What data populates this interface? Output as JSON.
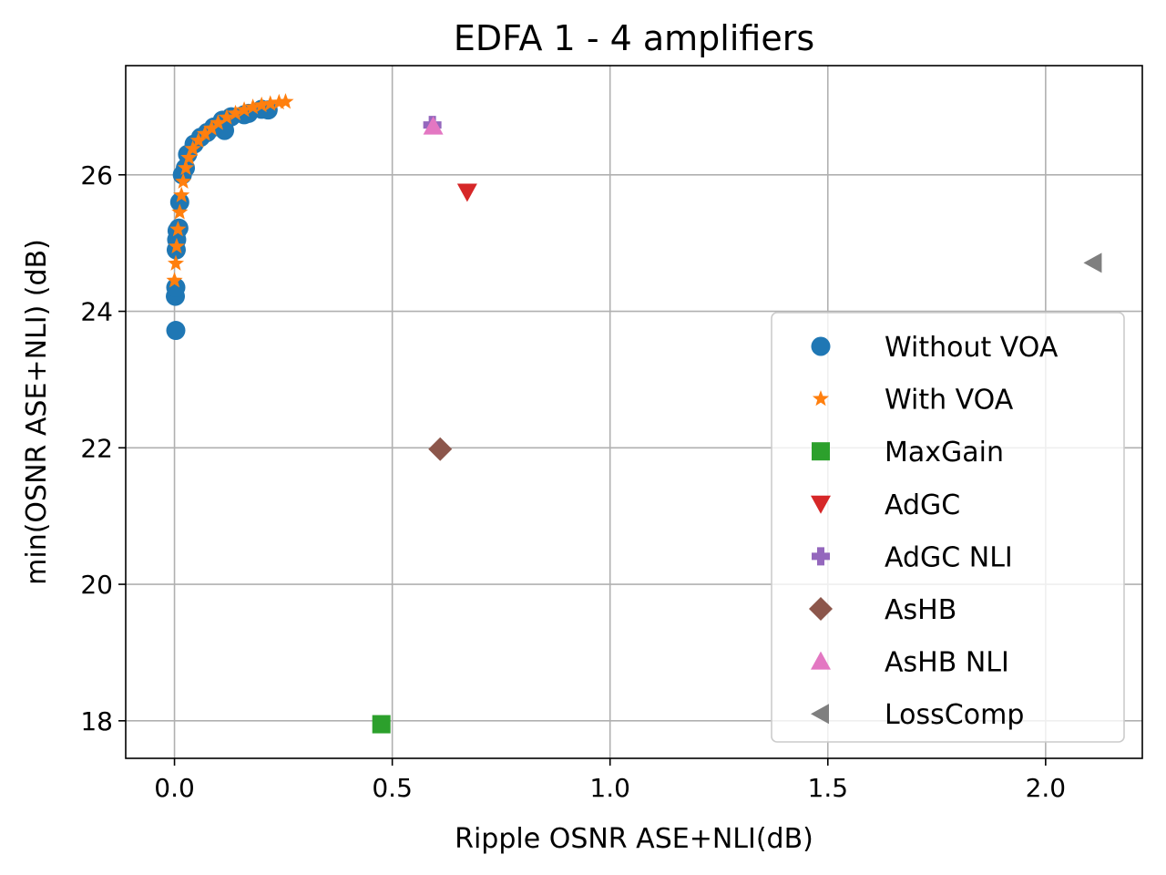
{
  "chart_data": {
    "type": "scatter",
    "title": "EDFA 1 - 4 amplifiers",
    "xlabel": "Ripple OSNR ASE+NLI(dB)",
    "ylabel": "min(OSNR ASE+NLI) (dB)",
    "xlim": [
      -0.112,
      2.222
    ],
    "ylim": [
      17.45,
      27.6
    ],
    "xticks": [
      0.0,
      0.5,
      1.0,
      1.5,
      2.0
    ],
    "xtick_labels": [
      "0.0",
      "0.5",
      "1.0",
      "1.5",
      "2.0"
    ],
    "yticks": [
      18,
      20,
      22,
      24,
      26
    ],
    "ytick_labels": [
      "18",
      "20",
      "22",
      "24",
      "26"
    ],
    "grid": true,
    "legend_position": "lower-right",
    "series": [
      {
        "name": "Without VOA",
        "marker": "circle",
        "color": "#1f77b4",
        "points": [
          [
            0.003,
            23.72
          ],
          [
            0.002,
            24.22
          ],
          [
            0.003,
            24.35
          ],
          [
            0.004,
            24.9
          ],
          [
            0.005,
            25.05
          ],
          [
            0.006,
            25.18
          ],
          [
            0.01,
            25.22
          ],
          [
            0.012,
            25.6
          ],
          [
            0.018,
            26.0
          ],
          [
            0.025,
            26.1
          ],
          [
            0.03,
            26.3
          ],
          [
            0.045,
            26.45
          ],
          [
            0.06,
            26.55
          ],
          [
            0.075,
            26.62
          ],
          [
            0.09,
            26.7
          ],
          [
            0.11,
            26.8
          ],
          [
            0.115,
            26.65
          ],
          [
            0.13,
            26.85
          ],
          [
            0.16,
            26.88
          ],
          [
            0.2,
            26.96
          ],
          [
            0.215,
            26.95
          ],
          [
            0.17,
            26.9
          ]
        ]
      },
      {
        "name": "With VOA",
        "marker": "star",
        "color": "#ff7f0e",
        "points": [
          [
            0.0,
            24.45
          ],
          [
            0.003,
            24.7
          ],
          [
            0.005,
            24.95
          ],
          [
            0.008,
            25.2
          ],
          [
            0.012,
            25.45
          ],
          [
            0.016,
            25.7
          ],
          [
            0.02,
            25.9
          ],
          [
            0.026,
            26.1
          ],
          [
            0.033,
            26.25
          ],
          [
            0.042,
            26.38
          ],
          [
            0.055,
            26.5
          ],
          [
            0.07,
            26.6
          ],
          [
            0.085,
            26.68
          ],
          [
            0.1,
            26.76
          ],
          [
            0.12,
            26.84
          ],
          [
            0.14,
            26.9
          ],
          [
            0.16,
            26.95
          ],
          [
            0.18,
            26.99
          ],
          [
            0.2,
            27.02
          ],
          [
            0.22,
            27.04
          ],
          [
            0.24,
            27.06
          ],
          [
            0.255,
            27.07
          ]
        ]
      },
      {
        "name": "MaxGain",
        "marker": "square",
        "color": "#2ca02c",
        "points": [
          [
            0.475,
            17.95
          ]
        ]
      },
      {
        "name": "AdGC",
        "marker": "triangle-down",
        "color": "#d62728",
        "points": [
          [
            0.672,
            25.75
          ]
        ]
      },
      {
        "name": "AdGC NLI",
        "marker": "plus",
        "color": "#9467bd",
        "points": [
          [
            0.592,
            26.73
          ]
        ]
      },
      {
        "name": "AsHB",
        "marker": "diamond",
        "color": "#8c564b",
        "points": [
          [
            0.61,
            21.98
          ]
        ]
      },
      {
        "name": "AsHB NLI",
        "marker": "triangle-up",
        "color": "#e377c2",
        "points": [
          [
            0.594,
            26.71
          ]
        ]
      },
      {
        "name": "LossComp",
        "marker": "triangle-left",
        "color": "#7f7f7f",
        "points": [
          [
            2.11,
            24.71
          ]
        ]
      }
    ]
  }
}
